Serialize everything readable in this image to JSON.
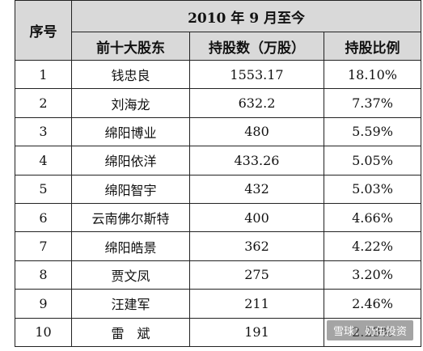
{
  "table": {
    "col_seq": "序号",
    "group_header": "2010 年 9 月至今",
    "col_holder": "前十大股东",
    "col_shares": "持股数（万股）",
    "col_ratio": "持股比例",
    "rows": [
      {
        "no": "1",
        "name": "钱忠良",
        "shares": "1553.17",
        "ratio": "18.10%"
      },
      {
        "no": "2",
        "name": "刘海龙",
        "shares": "632.2",
        "ratio": "7.37%"
      },
      {
        "no": "3",
        "name": "绵阳博业",
        "shares": "480",
        "ratio": "5.59%"
      },
      {
        "no": "4",
        "name": "绵阳依洋",
        "shares": "433.26",
        "ratio": "5.05%"
      },
      {
        "no": "5",
        "name": "绵阳智宇",
        "shares": "432",
        "ratio": "5.03%"
      },
      {
        "no": "6",
        "name": "云南佛尔斯特",
        "shares": "400",
        "ratio": "4.66%"
      },
      {
        "no": "7",
        "name": "绵阳皓景",
        "shares": "362",
        "ratio": "4.22%"
      },
      {
        "no": "8",
        "name": "贾文凤",
        "shares": "275",
        "ratio": "3.20%"
      },
      {
        "no": "9",
        "name": "汪建军",
        "shares": "211",
        "ratio": "2.46%"
      },
      {
        "no": "10",
        "name": "雷　斌",
        "shares": "191",
        "ratio": "2.23%"
      }
    ]
  },
  "watermark": "雪球：奶伍投资"
}
